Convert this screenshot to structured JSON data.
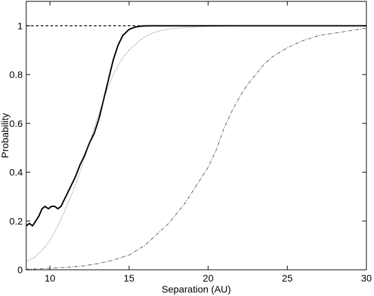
{
  "chart_data": {
    "type": "line",
    "title": "",
    "xlabel": "Separation (AU)",
    "ylabel": "Probability",
    "xlim": [
      8.5,
      30
    ],
    "ylim": [
      0,
      1.1
    ],
    "x_ticks": [
      10,
      15,
      20,
      25,
      30
    ],
    "y_ticks": [
      0,
      0.2,
      0.4,
      0.6,
      0.8,
      1
    ],
    "x_tick_labels": [
      "10",
      "15",
      "20",
      "25",
      "30"
    ],
    "y_tick_labels": [
      "0",
      "0.2",
      "0.4",
      "0.6",
      "0.8",
      "1"
    ],
    "grid": false,
    "legend": "none",
    "series": [
      {
        "style": "dashed",
        "color": "#000000",
        "x": [
          8.5,
          30
        ],
        "y": [
          1.0,
          1.0
        ]
      },
      {
        "style": "solid-thick",
        "color": "#000000",
        "x": [
          8.5,
          8.7,
          8.9,
          9.1,
          9.3,
          9.5,
          9.7,
          9.9,
          10.1,
          10.3,
          10.5,
          10.7,
          11.0,
          11.3,
          11.6,
          11.9,
          12.2,
          12.5,
          12.8,
          13.1,
          13.4,
          13.7,
          14.0,
          14.3,
          14.6,
          15.0,
          15.4,
          15.8,
          16.3,
          17.0,
          18.0,
          20.0,
          25.0,
          30.0
        ],
        "y": [
          0.18,
          0.19,
          0.18,
          0.2,
          0.22,
          0.25,
          0.26,
          0.25,
          0.26,
          0.26,
          0.25,
          0.26,
          0.3,
          0.34,
          0.38,
          0.43,
          0.47,
          0.52,
          0.56,
          0.62,
          0.7,
          0.78,
          0.86,
          0.92,
          0.96,
          0.985,
          0.995,
          0.999,
          1.0,
          1.0,
          1.0,
          1.0,
          1.0,
          1.0
        ]
      },
      {
        "style": "dotted",
        "color": "#444444",
        "x": [
          8.5,
          9.0,
          9.5,
          10.0,
          10.5,
          11.0,
          11.5,
          12.0,
          12.5,
          13.0,
          13.5,
          14.0,
          14.5,
          15.0,
          15.5,
          16.0,
          16.5,
          17.0,
          17.5,
          18.0,
          19.0,
          20.0,
          21.0,
          22.0,
          23.0,
          25.0,
          30.0
        ],
        "y": [
          0.035,
          0.05,
          0.08,
          0.12,
          0.18,
          0.25,
          0.33,
          0.42,
          0.52,
          0.62,
          0.72,
          0.8,
          0.86,
          0.9,
          0.93,
          0.955,
          0.97,
          0.98,
          0.987,
          0.99,
          0.995,
          0.997,
          0.998,
          0.999,
          1.0,
          1.0,
          1.0
        ]
      },
      {
        "style": "dashdot",
        "color": "#444444",
        "x": [
          8.5,
          9.0,
          10.0,
          11.0,
          12.0,
          13.0,
          14.0,
          15.0,
          15.5,
          16.0,
          16.5,
          17.0,
          17.5,
          18.0,
          18.5,
          19.0,
          19.5,
          20.0,
          20.5,
          21.0,
          21.5,
          22.0,
          22.5,
          23.0,
          23.5,
          24.0,
          25.0,
          26.0,
          27.0,
          28.0,
          29.0,
          30.0
        ],
        "y": [
          0.002,
          0.003,
          0.006,
          0.01,
          0.015,
          0.025,
          0.04,
          0.06,
          0.08,
          0.1,
          0.13,
          0.16,
          0.19,
          0.23,
          0.27,
          0.32,
          0.37,
          0.42,
          0.49,
          0.58,
          0.65,
          0.71,
          0.76,
          0.8,
          0.84,
          0.87,
          0.91,
          0.94,
          0.96,
          0.97,
          0.98,
          0.99
        ]
      }
    ]
  }
}
